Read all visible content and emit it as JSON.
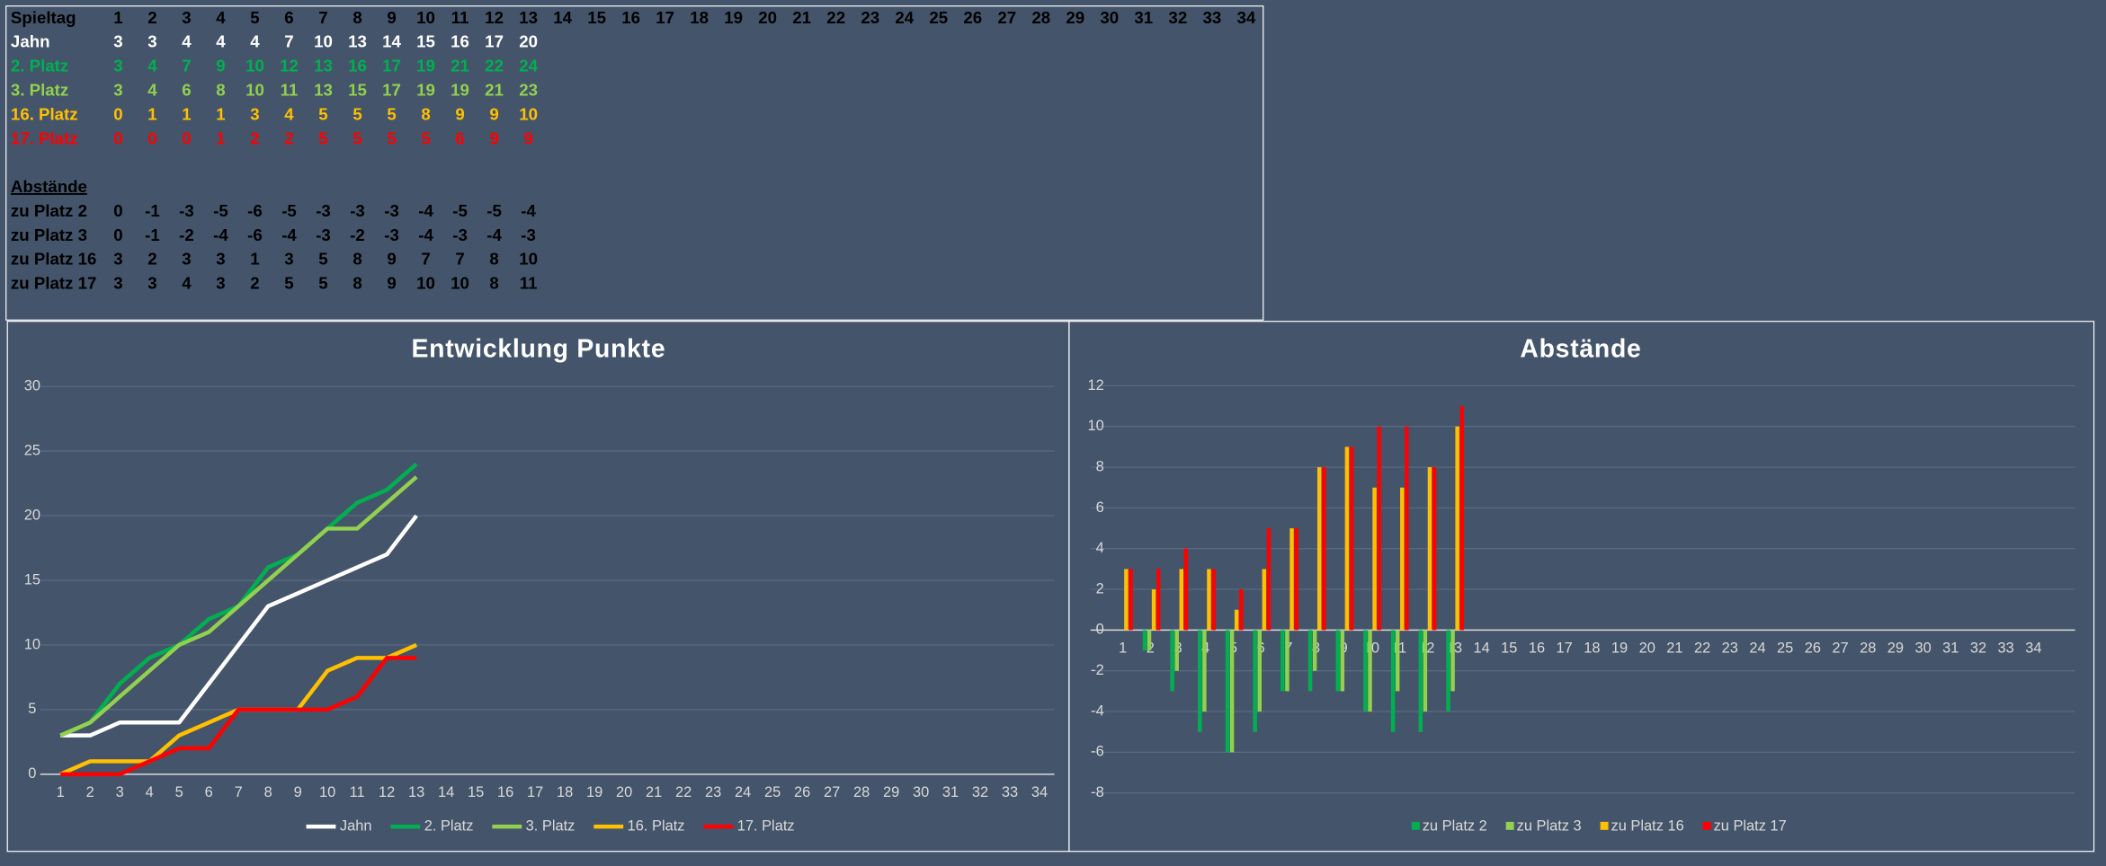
{
  "table": {
    "header": {
      "label": "Spieltag",
      "color": "#000000",
      "values": [
        1,
        2,
        3,
        4,
        5,
        6,
        7,
        8,
        9,
        10,
        11,
        12,
        13,
        14,
        15,
        16,
        17,
        18,
        19,
        20,
        21,
        22,
        23,
        24,
        25,
        26,
        27,
        28,
        29,
        30,
        31,
        32,
        33,
        34
      ]
    },
    "rows": [
      {
        "label": "Jahn",
        "color": "#ffffff",
        "values": [
          3,
          3,
          4,
          4,
          4,
          7,
          10,
          13,
          14,
          15,
          16,
          17,
          20
        ]
      },
      {
        "label": "2. Platz",
        "color": "#00b050",
        "values": [
          3,
          4,
          7,
          9,
          10,
          12,
          13,
          16,
          17,
          19,
          21,
          22,
          24
        ]
      },
      {
        "label": "3. Platz",
        "color": "#92d050",
        "values": [
          3,
          4,
          6,
          8,
          10,
          11,
          13,
          15,
          17,
          19,
          19,
          21,
          23
        ]
      },
      {
        "label": "16. Platz",
        "color": "#ffc000",
        "values": [
          0,
          1,
          1,
          1,
          3,
          4,
          5,
          5,
          5,
          8,
          9,
          9,
          10
        ]
      },
      {
        "label": "17. Platz",
        "color": "#ff0000",
        "values": [
          0,
          0,
          0,
          1,
          2,
          2,
          5,
          5,
          5,
          5,
          6,
          9,
          9
        ]
      }
    ],
    "section_title": "Abstände",
    "diff_rows": [
      {
        "label": "zu Platz 2",
        "color": "#000000",
        "values": [
          0,
          -1,
          -3,
          -5,
          -6,
          -5,
          -3,
          -3,
          -3,
          -4,
          -5,
          -5,
          -4
        ]
      },
      {
        "label": "zu Platz 3",
        "color": "#000000",
        "values": [
          0,
          -1,
          -2,
          -4,
          -6,
          -4,
          -3,
          -2,
          -3,
          -4,
          -3,
          -4,
          -3
        ]
      },
      {
        "label": "zu Platz 16",
        "color": "#000000",
        "values": [
          3,
          2,
          3,
          3,
          1,
          3,
          5,
          8,
          9,
          7,
          7,
          8,
          10
        ]
      },
      {
        "label": "zu Platz 17",
        "color": "#000000",
        "values": [
          3,
          3,
          4,
          3,
          2,
          5,
          5,
          8,
          9,
          10,
          10,
          8,
          11
        ]
      }
    ]
  },
  "chart_data": [
    {
      "type": "line",
      "title": "Entwicklung Punkte",
      "categories": [
        1,
        2,
        3,
        4,
        5,
        6,
        7,
        8,
        9,
        10,
        11,
        12,
        13,
        14,
        15,
        16,
        17,
        18,
        19,
        20,
        21,
        22,
        23,
        24,
        25,
        26,
        27,
        28,
        29,
        30,
        31,
        32,
        33,
        34
      ],
      "series": [
        {
          "name": "Jahn",
          "color": "#ffffff",
          "values": [
            3,
            3,
            4,
            4,
            4,
            7,
            10,
            13,
            14,
            15,
            16,
            17,
            20,
            null,
            null,
            null,
            null,
            null,
            null,
            null,
            null,
            null,
            null,
            null,
            null,
            null,
            null,
            null,
            null,
            null,
            null,
            null,
            null,
            null
          ]
        },
        {
          "name": "2. Platz",
          "color": "#00b050",
          "values": [
            3,
            4,
            7,
            9,
            10,
            12,
            13,
            16,
            17,
            19,
            21,
            22,
            24,
            null,
            null,
            null,
            null,
            null,
            null,
            null,
            null,
            null,
            null,
            null,
            null,
            null,
            null,
            null,
            null,
            null,
            null,
            null,
            null,
            null
          ]
        },
        {
          "name": "3. Platz",
          "color": "#92d050",
          "values": [
            3,
            4,
            6,
            8,
            10,
            11,
            13,
            15,
            17,
            19,
            19,
            21,
            23,
            null,
            null,
            null,
            null,
            null,
            null,
            null,
            null,
            null,
            null,
            null,
            null,
            null,
            null,
            null,
            null,
            null,
            null,
            null,
            null,
            null
          ]
        },
        {
          "name": "16. Platz",
          "color": "#ffc000",
          "values": [
            0,
            1,
            1,
            1,
            3,
            4,
            5,
            5,
            5,
            8,
            9,
            9,
            10,
            null,
            null,
            null,
            null,
            null,
            null,
            null,
            null,
            null,
            null,
            null,
            null,
            null,
            null,
            null,
            null,
            null,
            null,
            null,
            null,
            null
          ]
        },
        {
          "name": "17. Platz",
          "color": "#ff0000",
          "values": [
            0,
            0,
            0,
            1,
            2,
            2,
            5,
            5,
            5,
            5,
            6,
            9,
            9,
            null,
            null,
            null,
            null,
            null,
            null,
            null,
            null,
            null,
            null,
            null,
            null,
            null,
            null,
            null,
            null,
            null,
            null,
            null,
            null,
            null
          ]
        }
      ],
      "ylim": [
        0,
        30
      ],
      "yticks": [
        0,
        5,
        10,
        15,
        20,
        25,
        30
      ],
      "grid": true,
      "legend": "bottom"
    },
    {
      "type": "bar",
      "title": "Abstände",
      "categories": [
        1,
        2,
        3,
        4,
        5,
        6,
        7,
        8,
        9,
        10,
        11,
        12,
        13,
        14,
        15,
        16,
        17,
        18,
        19,
        20,
        21,
        22,
        23,
        24,
        25,
        26,
        27,
        28,
        29,
        30,
        31,
        32,
        33,
        34
      ],
      "series": [
        {
          "name": "zu Platz 2",
          "color": "#00b050",
          "values": [
            0,
            -1,
            -3,
            -5,
            -6,
            -5,
            -3,
            -3,
            -3,
            -4,
            -5,
            -5,
            -4,
            null,
            null,
            null,
            null,
            null,
            null,
            null,
            null,
            null,
            null,
            null,
            null,
            null,
            null,
            null,
            null,
            null,
            null,
            null,
            null,
            null
          ]
        },
        {
          "name": "zu Platz 3",
          "color": "#92d050",
          "values": [
            0,
            -1,
            -2,
            -4,
            -6,
            -4,
            -3,
            -2,
            -3,
            -4,
            -3,
            -4,
            -3,
            null,
            null,
            null,
            null,
            null,
            null,
            null,
            null,
            null,
            null,
            null,
            null,
            null,
            null,
            null,
            null,
            null,
            null,
            null,
            null,
            null
          ]
        },
        {
          "name": "zu Platz 16",
          "color": "#ffc000",
          "values": [
            3,
            2,
            3,
            3,
            1,
            3,
            5,
            8,
            9,
            7,
            7,
            8,
            10,
            null,
            null,
            null,
            null,
            null,
            null,
            null,
            null,
            null,
            null,
            null,
            null,
            null,
            null,
            null,
            null,
            null,
            null,
            null,
            null,
            null
          ]
        },
        {
          "name": "zu Platz 17",
          "color": "#ff0000",
          "values": [
            3,
            3,
            4,
            3,
            2,
            5,
            5,
            8,
            9,
            10,
            10,
            8,
            11,
            null,
            null,
            null,
            null,
            null,
            null,
            null,
            null,
            null,
            null,
            null,
            null,
            null,
            null,
            null,
            null,
            null,
            null,
            null,
            null,
            null
          ]
        }
      ],
      "ylim": [
        -8,
        12
      ],
      "yticks": [
        -8,
        -6,
        -4,
        -2,
        0,
        2,
        4,
        6,
        8,
        10,
        12
      ],
      "grid": true,
      "legend": "bottom"
    }
  ]
}
